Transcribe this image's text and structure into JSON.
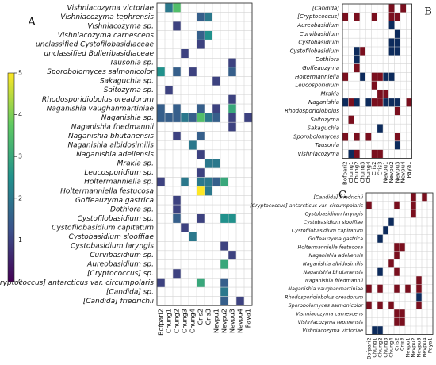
{
  "chart_data": [
    {
      "type": "heatmap",
      "label": "A",
      "colormap": "viridis",
      "colorbar": {
        "lim": [
          0,
          5
        ],
        "ticks": [
          0,
          1,
          2,
          3,
          4,
          5
        ]
      },
      "columns": [
        "Bofpari2",
        "Chung1",
        "Chung2",
        "Chung3",
        "Chung4",
        "Cris2",
        "Cris3",
        "Nevpu1",
        "Nevpu2",
        "Nevpu3",
        "Nevpu4",
        "Paya1"
      ],
      "rows": [
        "Vishniacozyma victoriae",
        "Vishniacozyma tephrensis",
        "Vishniacozyma sp.",
        "Vishniacozyma carnescens",
        "unclassified Cystofilobasidiaceae",
        "unclassified Bulleribasidiaceae",
        "Tausonia sp.",
        "Sporobolomyces salmonicolor",
        "Sakaguchia sp.",
        "Saitozyma sp.",
        "Rhodosporidiobolus oreadorum",
        "Naganishia vaughanmartiniae",
        "Naganishia sp.",
        "Naganishia friedmannii",
        "Naganishia bhutanensis",
        "Naganishia albidosimilis",
        "Naganishia adeliensis",
        "Mrakia sp.",
        "Leucosporidium sp.",
        "Holtermanniella sp.",
        "Holtermanniella festucosa",
        "Goffeauzyma gastrica",
        "Dothiora sp.",
        "Cystofilobasidium sp.",
        "Cystofilobasidium capitatum",
        "Cystobasidium slooffiae",
        "Cystobasidium laryngis",
        "Curvibasidium sp.",
        "Aureobasidium sp.",
        "[Cryptococcus] sp.",
        "[Cryptococcus] antarcticus var. circumpolaris",
        "[Candida] sp.",
        "[Candida] friedrichii"
      ],
      "values": [
        [
          null,
          2,
          3.5,
          null,
          null,
          null,
          null,
          null,
          null,
          null,
          null,
          null
        ],
        [
          null,
          null,
          null,
          null,
          null,
          1.5,
          2,
          null,
          null,
          null,
          null,
          null
        ],
        [
          null,
          null,
          1,
          null,
          null,
          null,
          null,
          null,
          null,
          null,
          null,
          null
        ],
        [
          null,
          null,
          null,
          null,
          null,
          1.5,
          2.5,
          null,
          null,
          null,
          null,
          null
        ],
        [
          null,
          null,
          null,
          null,
          null,
          1,
          null,
          null,
          null,
          null,
          null,
          null
        ],
        [
          null,
          null,
          null,
          1,
          null,
          null,
          null,
          null,
          null,
          null,
          null,
          null
        ],
        [
          null,
          null,
          null,
          null,
          null,
          null,
          null,
          null,
          null,
          1,
          null,
          null
        ],
        [
          2.5,
          null,
          1.5,
          null,
          1,
          null,
          null,
          null,
          null,
          1.5,
          null,
          null
        ],
        [
          null,
          null,
          null,
          null,
          null,
          null,
          null,
          1,
          null,
          null,
          null,
          null
        ],
        [
          null,
          1,
          null,
          null,
          null,
          null,
          null,
          null,
          null,
          null,
          null,
          null
        ],
        [
          null,
          null,
          null,
          null,
          null,
          null,
          null,
          null,
          null,
          1,
          null,
          null
        ],
        [
          1.5,
          null,
          1.5,
          null,
          null,
          1.5,
          null,
          1,
          null,
          3,
          null,
          null
        ],
        [
          1.5,
          1.5,
          1.5,
          2,
          1.5,
          3.5,
          2,
          1.5,
          null,
          1,
          null,
          1
        ],
        [
          null,
          null,
          null,
          null,
          null,
          null,
          null,
          null,
          null,
          1,
          null,
          null
        ],
        [
          null,
          null,
          1,
          null,
          null,
          1.5,
          null,
          null,
          null,
          null,
          null,
          null
        ],
        [
          null,
          null,
          null,
          null,
          2,
          null,
          null,
          null,
          null,
          null,
          null,
          null
        ],
        [
          null,
          null,
          null,
          null,
          null,
          1,
          null,
          null,
          null,
          null,
          null,
          null
        ],
        [
          null,
          null,
          null,
          null,
          null,
          null,
          2,
          2,
          null,
          null,
          null,
          null
        ],
        [
          null,
          null,
          null,
          null,
          null,
          1,
          null,
          null,
          null,
          null,
          null,
          null
        ],
        [
          1,
          null,
          null,
          2,
          null,
          2,
          2,
          1.5,
          3,
          null,
          null,
          null
        ],
        [
          null,
          null,
          null,
          null,
          null,
          5,
          2,
          null,
          null,
          null,
          null,
          null
        ],
        [
          null,
          null,
          1,
          null,
          null,
          null,
          null,
          null,
          null,
          null,
          null,
          null
        ],
        [
          null,
          null,
          1,
          null,
          null,
          null,
          null,
          null,
          null,
          null,
          null,
          null
        ],
        [
          null,
          null,
          1.5,
          null,
          null,
          1,
          null,
          null,
          2.5,
          2.5,
          null,
          null
        ],
        [
          null,
          null,
          null,
          1,
          null,
          null,
          null,
          null,
          null,
          null,
          null,
          null
        ],
        [
          null,
          null,
          null,
          null,
          2,
          null,
          null,
          null,
          null,
          null,
          null,
          null
        ],
        [
          null,
          null,
          null,
          null,
          null,
          null,
          null,
          null,
          1,
          null,
          null,
          null
        ],
        [
          null,
          null,
          null,
          null,
          null,
          null,
          null,
          null,
          null,
          1,
          null,
          null
        ],
        [
          null,
          null,
          null,
          null,
          null,
          null,
          null,
          null,
          3,
          null,
          null,
          null
        ],
        [
          null,
          null,
          1,
          null,
          null,
          null,
          null,
          null,
          null,
          null,
          null,
          null
        ],
        [
          1,
          null,
          null,
          null,
          null,
          3,
          null,
          null,
          1.5,
          null,
          null,
          null
        ],
        [
          null,
          null,
          null,
          null,
          null,
          null,
          null,
          null,
          2,
          null,
          null,
          null
        ],
        [
          null,
          null,
          null,
          null,
          null,
          null,
          null,
          null,
          1.5,
          null,
          1,
          null
        ]
      ]
    },
    {
      "type": "heatmap",
      "label": "B",
      "code_colors": [
        "#7a0f1e",
        "#0d2b5c"
      ],
      "columns": [
        "Bofpari2",
        "Chung1",
        "Chung2",
        "Chung3",
        "Chung4",
        "Cris2",
        "Cris3",
        "Nevpu1",
        "Nevpu2",
        "Nevpu3",
        "Nevpu4",
        "Paya1"
      ],
      "rows": [
        "[Candida]",
        "[Cryptococcus]",
        "Aureobasidium",
        "Curvibasidium",
        "Cystobasidium",
        "Cystofilobasidium",
        "Dothiora",
        "Goffeauzyma",
        "Holtermanniella",
        "Leucosporidium",
        "Mrakia",
        "Naganishia",
        "Rhodosporidiobolus",
        "Saitozyma",
        "Sakaguchia",
        "Sporobolomyces",
        "Tausonia",
        "Vishniacozyma"
      ],
      "values": [
        [
          null,
          null,
          null,
          null,
          null,
          null,
          null,
          null,
          1,
          null,
          1,
          null
        ],
        [
          1,
          null,
          1,
          null,
          null,
          1,
          null,
          null,
          1,
          1,
          null,
          null
        ],
        [
          null,
          null,
          null,
          null,
          null,
          null,
          null,
          null,
          2,
          null,
          null,
          null
        ],
        [
          null,
          null,
          null,
          null,
          null,
          null,
          null,
          null,
          null,
          2,
          null,
          null
        ],
        [
          null,
          null,
          null,
          null,
          null,
          null,
          null,
          null,
          2,
          2,
          null,
          null
        ],
        [
          null,
          null,
          2,
          1,
          null,
          null,
          null,
          null,
          2,
          2,
          null,
          null
        ],
        [
          null,
          null,
          2,
          null,
          null,
          null,
          null,
          null,
          null,
          null,
          null,
          null
        ],
        [
          null,
          null,
          1,
          null,
          null,
          null,
          null,
          null,
          null,
          null,
          null,
          null
        ],
        [
          1,
          null,
          null,
          2,
          null,
          1,
          1,
          2,
          2,
          null,
          null,
          null
        ],
        [
          null,
          null,
          null,
          null,
          null,
          1,
          null,
          null,
          null,
          null,
          null,
          null
        ],
        [
          null,
          null,
          null,
          null,
          null,
          null,
          1,
          1,
          null,
          null,
          null,
          null
        ],
        [
          2,
          1,
          2,
          null,
          2,
          1,
          1,
          2,
          2,
          2,
          null,
          1
        ],
        [
          null,
          null,
          null,
          null,
          null,
          null,
          null,
          null,
          null,
          1,
          null,
          null
        ],
        [
          null,
          1,
          null,
          null,
          null,
          null,
          null,
          null,
          null,
          null,
          null,
          null
        ],
        [
          null,
          null,
          null,
          null,
          null,
          null,
          2,
          null,
          null,
          null,
          null,
          null
        ],
        [
          1,
          null,
          1,
          null,
          1,
          null,
          null,
          null,
          null,
          1,
          null,
          null
        ],
        [
          null,
          null,
          null,
          null,
          null,
          null,
          null,
          null,
          null,
          2,
          null,
          null
        ],
        [
          null,
          2,
          1,
          null,
          null,
          1,
          1,
          null,
          null,
          null,
          null,
          null
        ]
      ]
    },
    {
      "type": "heatmap",
      "label": "C",
      "code_colors": [
        "#7a0f1e",
        "#0d2b5c"
      ],
      "columns": [
        "Bofpari2",
        "Chung1",
        "Chung2",
        "Chung3",
        "Chung4",
        "Cris2",
        "Cris3",
        "Nevpu1",
        "Nevpu2",
        "Nevpu3",
        "Nevpu4",
        "Paya1"
      ],
      "rows": [
        "[Candida] friedrichii",
        "[Cryptococcus] antarcticus var. circumpolaris",
        "Cystobasidium laryngis",
        "Cystobasidium slooffiae",
        "Cystofilobasidium capitatum",
        "Goffeauzyma gastrica",
        "Holtermanniella festucosa",
        "Naganishia adeliensis",
        "Naganishia albidosimilis",
        "Naganishia bhutanensis",
        "Naganishia friedmannii",
        "Naganishia vaughanmartiniae",
        "Rhodosporidiobolus oreadorum",
        "Sporobolomyces salmonicolor",
        "Vishniacozyma carnescens",
        "Vishniacozyma tephrensis",
        "Vishniacozyma victoriae"
      ],
      "values": [
        [
          null,
          null,
          null,
          null,
          null,
          null,
          null,
          null,
          1,
          null,
          1,
          null
        ],
        [
          1,
          null,
          null,
          null,
          null,
          1,
          null,
          null,
          1,
          null,
          null,
          null
        ],
        [
          null,
          null,
          null,
          null,
          null,
          null,
          null,
          null,
          1,
          null,
          null,
          null
        ],
        [
          null,
          null,
          null,
          null,
          2,
          null,
          null,
          null,
          null,
          null,
          null,
          null
        ],
        [
          null,
          null,
          null,
          2,
          null,
          null,
          null,
          null,
          null,
          null,
          null,
          null
        ],
        [
          null,
          null,
          2,
          null,
          null,
          null,
          null,
          null,
          null,
          null,
          null,
          null
        ],
        [
          null,
          null,
          null,
          null,
          null,
          1,
          1,
          null,
          null,
          null,
          null,
          null
        ],
        [
          null,
          null,
          null,
          null,
          null,
          1,
          null,
          null,
          null,
          null,
          null,
          null
        ],
        [
          null,
          null,
          null,
          null,
          1,
          null,
          null,
          null,
          null,
          null,
          null,
          null
        ],
        [
          null,
          null,
          2,
          null,
          null,
          1,
          null,
          null,
          null,
          null,
          null,
          null
        ],
        [
          null,
          null,
          null,
          null,
          null,
          null,
          null,
          null,
          null,
          1,
          null,
          null
        ],
        [
          1,
          null,
          1,
          null,
          null,
          1,
          null,
          1,
          null,
          1,
          null,
          null
        ],
        [
          null,
          null,
          null,
          null,
          null,
          null,
          null,
          null,
          null,
          2,
          null,
          null
        ],
        [
          1,
          null,
          1,
          null,
          1,
          null,
          null,
          null,
          null,
          1,
          null,
          null
        ],
        [
          null,
          null,
          null,
          null,
          null,
          1,
          1,
          null,
          null,
          null,
          null,
          null
        ],
        [
          null,
          null,
          null,
          null,
          null,
          1,
          1,
          null,
          null,
          null,
          null,
          null
        ],
        [
          null,
          2,
          2,
          null,
          null,
          null,
          null,
          null,
          null,
          null,
          null,
          null
        ]
      ]
    }
  ]
}
